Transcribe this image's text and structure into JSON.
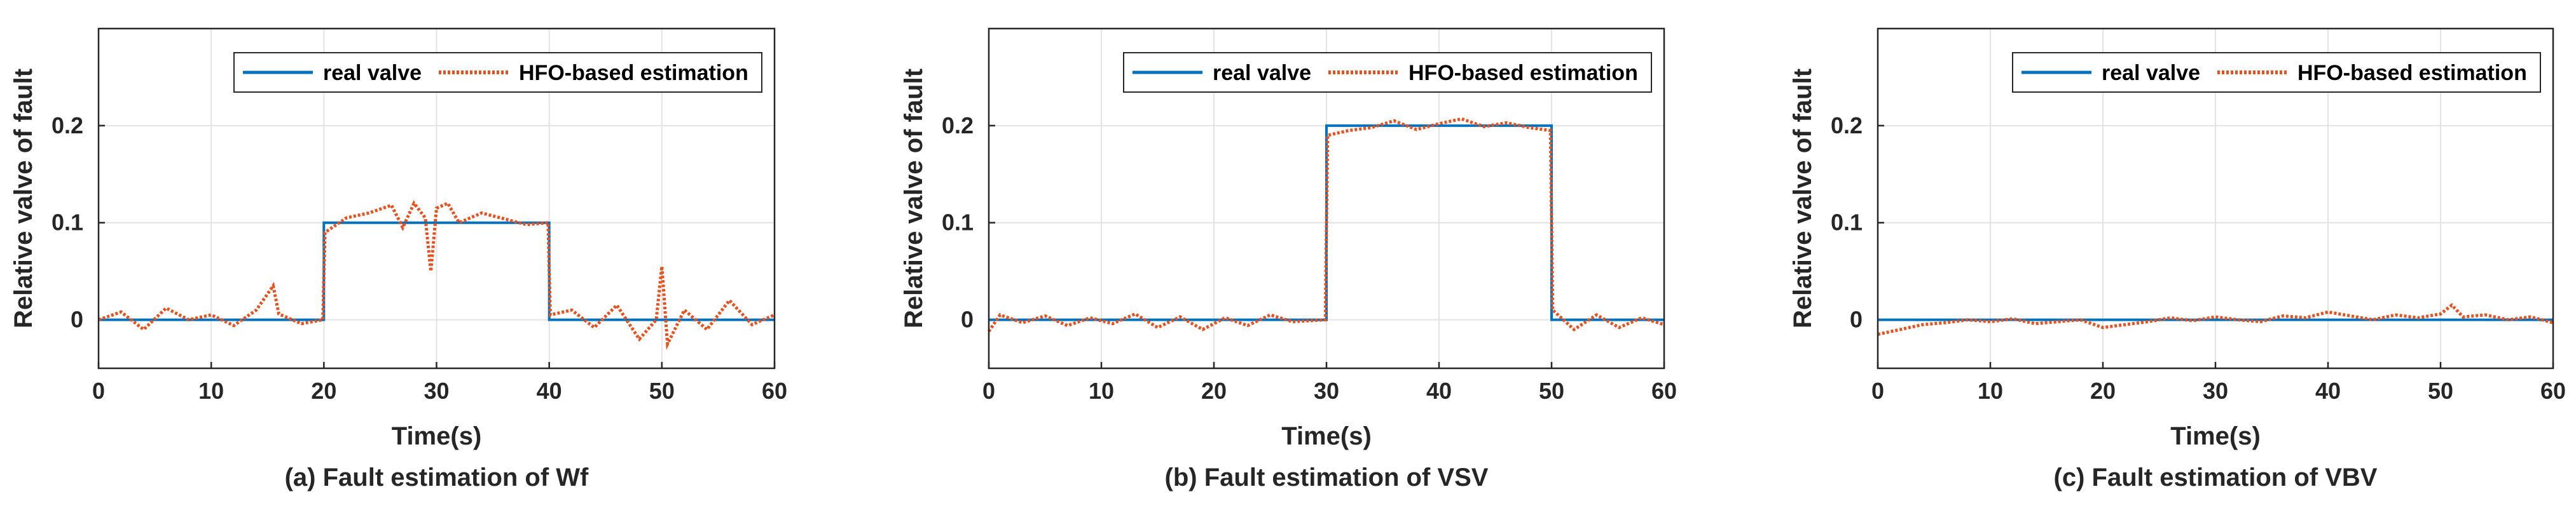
{
  "chart_data": [
    {
      "type": "line",
      "panel_label": "(a) Fault estimation of Wf",
      "xlabel": "Time(s)",
      "ylabel": "Relative valve of fault",
      "xlim": [
        0,
        60
      ],
      "ylim": [
        -0.05,
        0.3
      ],
      "xticks": [
        0,
        10,
        20,
        30,
        40,
        50,
        60
      ],
      "yticks": [
        0,
        0.1,
        0.2
      ],
      "grid": true,
      "legend": {
        "placement": "top-right"
      },
      "series": [
        {
          "name": "real valve",
          "style": "solid",
          "color": "#0072BD",
          "x": [
            0,
            20,
            20,
            40,
            40,
            60
          ],
          "y": [
            0,
            0,
            0.1,
            0.1,
            0,
            0
          ]
        },
        {
          "name": "HFO-based estimation",
          "style": "dotted",
          "color": "#E8501E",
          "x": [
            0,
            2,
            4,
            6,
            8,
            10,
            12,
            14,
            15.5,
            16,
            18,
            19.9,
            20.1,
            22,
            24,
            26,
            27,
            28,
            29,
            29.5,
            30,
            31,
            32,
            34,
            36,
            38,
            39.9,
            40.1,
            42,
            44,
            46,
            48,
            49.5,
            50,
            50.5,
            52,
            54,
            56,
            58,
            60
          ],
          "y": [
            0.0,
            0.008,
            -0.01,
            0.012,
            0.0,
            0.005,
            -0.006,
            0.01,
            0.035,
            0.006,
            -0.004,
            0.0,
            0.09,
            0.105,
            0.11,
            0.118,
            0.095,
            0.12,
            0.105,
            0.05,
            0.115,
            0.12,
            0.1,
            0.11,
            0.104,
            0.098,
            0.1,
            0.005,
            0.01,
            -0.008,
            0.015,
            -0.02,
            0.0,
            0.055,
            -0.025,
            0.01,
            -0.01,
            0.02,
            -0.005,
            0.005
          ]
        }
      ]
    },
    {
      "type": "line",
      "panel_label": "(b) Fault estimation of VSV",
      "xlabel": "Time(s)",
      "ylabel": "Relative valve of fault",
      "xlim": [
        0,
        60
      ],
      "ylim": [
        -0.05,
        0.3
      ],
      "xticks": [
        0,
        10,
        20,
        30,
        40,
        50,
        60
      ],
      "yticks": [
        0,
        0.1,
        0.2
      ],
      "grid": true,
      "legend": {
        "placement": "top-right"
      },
      "series": [
        {
          "name": "real valve",
          "style": "solid",
          "color": "#0072BD",
          "x": [
            0,
            30,
            30,
            50,
            50,
            60
          ],
          "y": [
            0,
            0,
            0.2,
            0.2,
            0,
            0
          ]
        },
        {
          "name": "HFO-based estimation",
          "style": "dotted",
          "color": "#E8501E",
          "x": [
            0,
            1,
            3,
            5,
            7,
            9,
            11,
            13,
            15,
            17,
            19,
            21,
            23,
            25,
            27,
            29.9,
            30.1,
            32,
            34,
            36,
            38,
            40,
            42,
            44,
            46,
            48,
            49.9,
            50.1,
            52,
            54,
            56,
            58,
            60
          ],
          "y": [
            -0.012,
            0.005,
            -0.003,
            0.004,
            -0.006,
            0.002,
            -0.004,
            0.006,
            -0.008,
            0.003,
            -0.01,
            0.002,
            -0.006,
            0.005,
            -0.002,
            0.0,
            0.19,
            0.195,
            0.198,
            0.205,
            0.196,
            0.202,
            0.207,
            0.199,
            0.203,
            0.198,
            0.195,
            0.01,
            -0.01,
            0.005,
            -0.008,
            0.002,
            -0.005
          ]
        }
      ]
    },
    {
      "type": "line",
      "panel_label": "(c) Fault estimation of VBV",
      "xlabel": "Time(s)",
      "ylabel": "Relative valve of fault",
      "xlim": [
        0,
        60
      ],
      "ylim": [
        -0.05,
        0.3
      ],
      "xticks": [
        0,
        10,
        20,
        30,
        40,
        50,
        60
      ],
      "yticks": [
        0,
        0.1,
        0.2
      ],
      "grid": true,
      "legend": {
        "placement": "top-right"
      },
      "series": [
        {
          "name": "real valve",
          "style": "solid",
          "color": "#0072BD",
          "x": [
            0,
            60
          ],
          "y": [
            0,
            0
          ]
        },
        {
          "name": "HFO-based estimation",
          "style": "dotted",
          "color": "#E8501E",
          "x": [
            0,
            2,
            4,
            6,
            8,
            10,
            12,
            14,
            16,
            18,
            20,
            22,
            24,
            26,
            28,
            30,
            32,
            34,
            36,
            38,
            40,
            42,
            44,
            46,
            48,
            50,
            51,
            52,
            54,
            56,
            58,
            60
          ],
          "y": [
            -0.015,
            -0.01,
            -0.005,
            -0.003,
            0.0,
            -0.002,
            0.001,
            -0.004,
            -0.002,
            0.0,
            -0.008,
            -0.005,
            -0.002,
            0.002,
            -0.001,
            0.003,
            0.0,
            -0.002,
            0.004,
            0.002,
            0.008,
            0.004,
            0.0,
            0.005,
            0.002,
            0.006,
            0.015,
            0.003,
            0.005,
            0.0,
            0.003,
            -0.003
          ]
        }
      ]
    }
  ]
}
